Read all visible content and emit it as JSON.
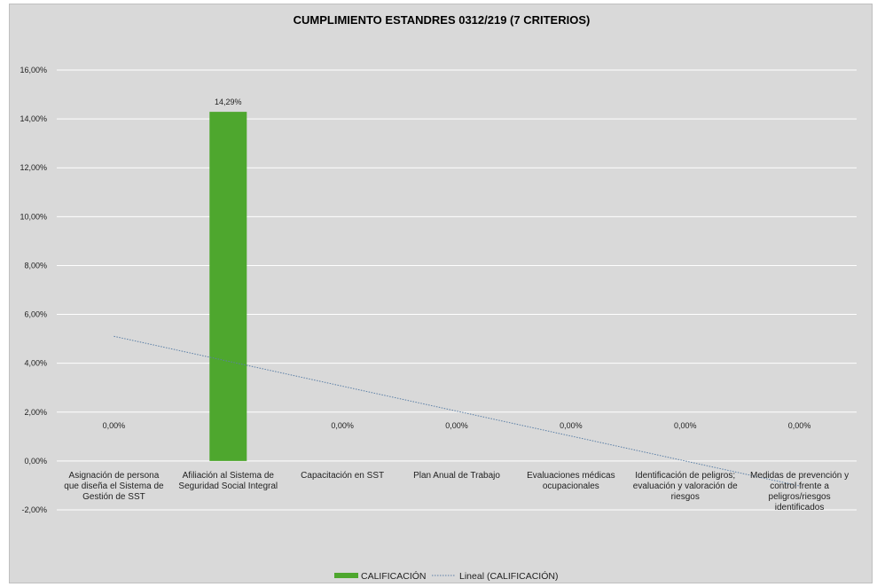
{
  "chart_data": {
    "type": "bar",
    "title": "CUMPLIMIENTO ESTANDRES 0312/219 (7 CRITERIOS)",
    "categories": [
      [
        "Asignación de persona",
        "que diseña el Sistema de",
        "Gestión de SST"
      ],
      [
        "Afiliación al Sistema de",
        "Seguridad Social Integral"
      ],
      [
        "Capacitación en SST"
      ],
      [
        "Plan Anual de Trabajo"
      ],
      [
        "Evaluaciones médicas",
        "ocupacionales"
      ],
      [
        "Identificación de peligros;",
        "evaluación y valoración de",
        "riesgos"
      ],
      [
        "Medidas de prevención y",
        "control frente a",
        "peligros/riesgos",
        "identificados"
      ]
    ],
    "series": [
      {
        "name": "CALIFICACIÓN",
        "values": [
          0,
          14.29,
          0,
          0,
          0,
          0,
          0
        ],
        "labels": [
          "0,00%",
          "14,29%",
          "0,00%",
          "0,00%",
          "0,00%",
          "0,00%",
          "0,00%"
        ],
        "color": "#4ea72e"
      }
    ],
    "trendline": {
      "name": "Lineal (CALIFICACIÓN)",
      "type": "linear",
      "color": "#5b7fa6"
    },
    "ylim": [
      -2,
      16
    ],
    "yticks": [
      -2,
      0,
      2,
      4,
      6,
      8,
      10,
      12,
      14,
      16
    ],
    "ytick_labels": [
      "-2,00%",
      "0,00%",
      "2,00%",
      "4,00%",
      "6,00%",
      "8,00%",
      "10,00%",
      "12,00%",
      "14,00%",
      "16,00%"
    ],
    "grid": true,
    "legend_position": "bottom"
  },
  "colors": {
    "background": "#d9d9d9",
    "gridline": "#ffffff",
    "bar": "#4ea72e",
    "trendline": "#5b7fa6"
  }
}
